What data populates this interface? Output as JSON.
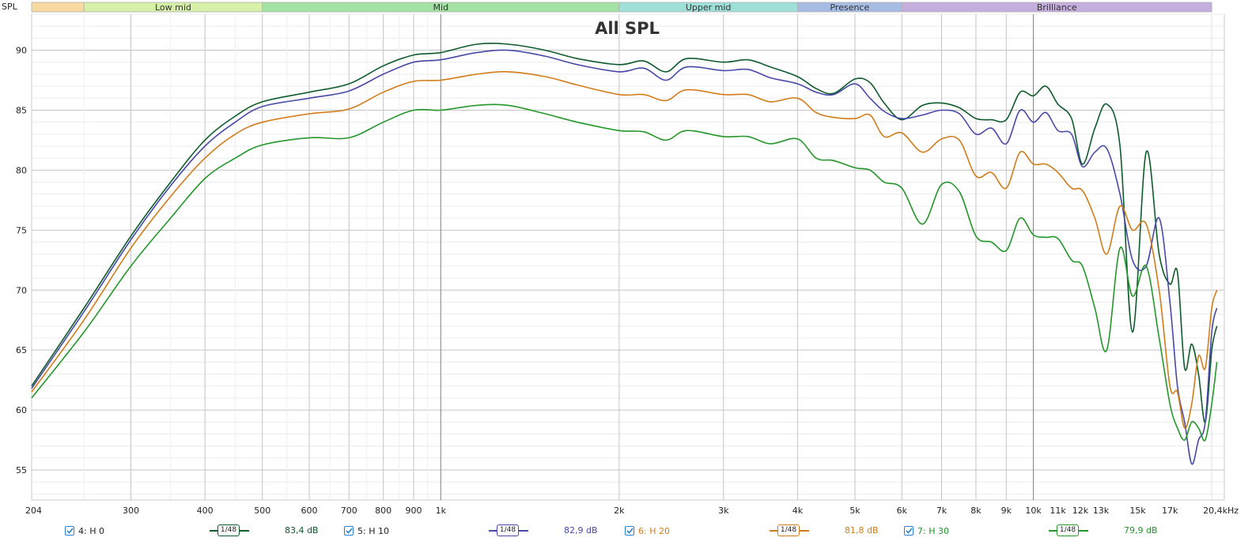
{
  "chart_data": {
    "type": "line",
    "title": "All SPL",
    "ylabel": "SPL",
    "xlabel": "",
    "x_scale": "log",
    "xlim": [
      204,
      21000
    ],
    "ylim": [
      52.5,
      93.0
    ],
    "x_tick_labels": [
      {
        "f": 204,
        "label": "204"
      },
      {
        "f": 300,
        "label": "300"
      },
      {
        "f": 400,
        "label": "400"
      },
      {
        "f": 500,
        "label": "500"
      },
      {
        "f": 600,
        "label": "600"
      },
      {
        "f": 700,
        "label": "700"
      },
      {
        "f": 800,
        "label": "800"
      },
      {
        "f": 900,
        "label": "900"
      },
      {
        "f": 1000,
        "label": "1k"
      },
      {
        "f": 2000,
        "label": "2k"
      },
      {
        "f": 3000,
        "label": "3k"
      },
      {
        "f": 4000,
        "label": "4k"
      },
      {
        "f": 5000,
        "label": "5k"
      },
      {
        "f": 6000,
        "label": "6k"
      },
      {
        "f": 7000,
        "label": "7k"
      },
      {
        "f": 8000,
        "label": "8k"
      },
      {
        "f": 9000,
        "label": "9k"
      },
      {
        "f": 10000,
        "label": "10k"
      },
      {
        "f": 11000,
        "label": "11k"
      },
      {
        "f": 12000,
        "label": "12k"
      },
      {
        "f": 13000,
        "label": "13k"
      },
      {
        "f": 15000,
        "label": "15k"
      },
      {
        "f": 17000,
        "label": "17k"
      },
      {
        "f": 20400,
        "label": "20,4kHz"
      }
    ],
    "y_ticks": [
      55,
      60,
      65,
      70,
      75,
      80,
      85,
      90
    ],
    "bands": [
      {
        "label": "",
        "from": 204,
        "to": 250,
        "color": "#f8d9a0"
      },
      {
        "label": "Low mid",
        "from": 250,
        "to": 500,
        "color": "#d7f0a8"
      },
      {
        "label": "Mid",
        "from": 500,
        "to": 2000,
        "color": "#a4e2a4"
      },
      {
        "label": "Upper mid",
        "from": 2000,
        "to": 4000,
        "color": "#9ee0d8"
      },
      {
        "label": "Presence",
        "from": 4000,
        "to": 6000,
        "color": "#a6bce2"
      },
      {
        "label": "Brilliance",
        "from": 6000,
        "to": 20000,
        "color": "#c4aedd"
      }
    ],
    "series": [
      {
        "name": "4: H 0",
        "color": "#0e5b2c",
        "smoothing": "1/48",
        "avg": "83,4 dB",
        "points": [
          [
            204,
            62.0
          ],
          [
            250,
            68.5
          ],
          [
            300,
            74.5
          ],
          [
            350,
            79.0
          ],
          [
            400,
            82.5
          ],
          [
            450,
            84.5
          ],
          [
            500,
            85.7
          ],
          [
            600,
            86.5
          ],
          [
            700,
            87.2
          ],
          [
            800,
            88.7
          ],
          [
            900,
            89.6
          ],
          [
            1000,
            89.8
          ],
          [
            1150,
            90.5
          ],
          [
            1300,
            90.5
          ],
          [
            1500,
            90.0
          ],
          [
            1700,
            89.3
          ],
          [
            2000,
            88.8
          ],
          [
            2200,
            89.1
          ],
          [
            2400,
            88.2
          ],
          [
            2600,
            89.3
          ],
          [
            3000,
            89.0
          ],
          [
            3300,
            89.2
          ],
          [
            3600,
            88.6
          ],
          [
            4000,
            87.8
          ],
          [
            4300,
            86.8
          ],
          [
            4600,
            86.4
          ],
          [
            5000,
            87.6
          ],
          [
            5300,
            87.3
          ],
          [
            5600,
            85.6
          ],
          [
            6000,
            84.2
          ],
          [
            6500,
            85.4
          ],
          [
            7000,
            85.6
          ],
          [
            7500,
            85.2
          ],
          [
            8000,
            84.3
          ],
          [
            8500,
            84.2
          ],
          [
            9000,
            84.2
          ],
          [
            9500,
            86.5
          ],
          [
            10000,
            86.2
          ],
          [
            10500,
            87.0
          ],
          [
            11000,
            85.5
          ],
          [
            11600,
            84.3
          ],
          [
            12100,
            80.5
          ],
          [
            12700,
            83.5
          ],
          [
            13300,
            85.5
          ],
          [
            14000,
            82.0
          ],
          [
            14700,
            66.5
          ],
          [
            15500,
            81.5
          ],
          [
            16300,
            73.0
          ],
          [
            17000,
            70.5
          ],
          [
            17500,
            71.5
          ],
          [
            18000,
            63.5
          ],
          [
            18500,
            65.5
          ],
          [
            19000,
            63.0
          ],
          [
            19500,
            59.0
          ],
          [
            20000,
            65.0
          ],
          [
            20400,
            67.0
          ]
        ]
      },
      {
        "name": "5: H 10",
        "color": "#4848a8",
        "smoothing": "1/48",
        "avg": "82,9 dB",
        "points": [
          [
            204,
            61.8
          ],
          [
            250,
            68.2
          ],
          [
            300,
            74.2
          ],
          [
            350,
            78.7
          ],
          [
            400,
            82.0
          ],
          [
            450,
            84.0
          ],
          [
            500,
            85.3
          ],
          [
            600,
            86.0
          ],
          [
            700,
            86.6
          ],
          [
            800,
            88.0
          ],
          [
            900,
            89.0
          ],
          [
            1000,
            89.2
          ],
          [
            1150,
            89.8
          ],
          [
            1300,
            90.0
          ],
          [
            1500,
            89.5
          ],
          [
            1700,
            88.8
          ],
          [
            2000,
            88.2
          ],
          [
            2200,
            88.5
          ],
          [
            2400,
            87.5
          ],
          [
            2600,
            88.6
          ],
          [
            3000,
            88.3
          ],
          [
            3300,
            88.4
          ],
          [
            3600,
            87.7
          ],
          [
            4000,
            87.2
          ],
          [
            4300,
            86.5
          ],
          [
            4600,
            86.3
          ],
          [
            5000,
            87.2
          ],
          [
            5300,
            86.0
          ],
          [
            5600,
            84.9
          ],
          [
            6000,
            84.3
          ],
          [
            6500,
            84.6
          ],
          [
            7000,
            85.0
          ],
          [
            7500,
            84.7
          ],
          [
            8000,
            83.0
          ],
          [
            8500,
            83.5
          ],
          [
            9000,
            82.2
          ],
          [
            9500,
            85.0
          ],
          [
            10000,
            84.0
          ],
          [
            10500,
            84.8
          ],
          [
            11000,
            83.3
          ],
          [
            11600,
            83.0
          ],
          [
            12100,
            80.3
          ],
          [
            12700,
            81.5
          ],
          [
            13300,
            81.8
          ],
          [
            14000,
            78.0
          ],
          [
            14700,
            72.5
          ],
          [
            15500,
            72.0
          ],
          [
            16300,
            76.0
          ],
          [
            17000,
            69.0
          ],
          [
            17500,
            62.0
          ],
          [
            18000,
            59.0
          ],
          [
            18500,
            55.5
          ],
          [
            19000,
            57.5
          ],
          [
            19500,
            59.0
          ],
          [
            20000,
            66.5
          ],
          [
            20400,
            68.5
          ]
        ]
      },
      {
        "name": "6: H 20",
        "color": "#d27c19",
        "smoothing": "1/48",
        "avg": "81,8 dB",
        "points": [
          [
            204,
            61.5
          ],
          [
            250,
            67.5
          ],
          [
            300,
            73.5
          ],
          [
            350,
            77.8
          ],
          [
            400,
            81.0
          ],
          [
            450,
            83.0
          ],
          [
            500,
            84.0
          ],
          [
            600,
            84.7
          ],
          [
            700,
            85.1
          ],
          [
            800,
            86.5
          ],
          [
            900,
            87.4
          ],
          [
            1000,
            87.5
          ],
          [
            1150,
            88.0
          ],
          [
            1300,
            88.2
          ],
          [
            1500,
            87.8
          ],
          [
            1700,
            87.1
          ],
          [
            2000,
            86.3
          ],
          [
            2200,
            86.3
          ],
          [
            2400,
            85.8
          ],
          [
            2600,
            86.7
          ],
          [
            3000,
            86.3
          ],
          [
            3300,
            86.3
          ],
          [
            3600,
            85.7
          ],
          [
            4000,
            86.0
          ],
          [
            4300,
            84.8
          ],
          [
            4600,
            84.4
          ],
          [
            5000,
            84.3
          ],
          [
            5300,
            84.6
          ],
          [
            5600,
            82.8
          ],
          [
            6000,
            83.1
          ],
          [
            6500,
            81.5
          ],
          [
            7000,
            82.6
          ],
          [
            7500,
            82.5
          ],
          [
            8000,
            79.5
          ],
          [
            8500,
            79.8
          ],
          [
            9000,
            78.5
          ],
          [
            9500,
            81.5
          ],
          [
            10000,
            80.5
          ],
          [
            10500,
            80.5
          ],
          [
            11000,
            79.8
          ],
          [
            11600,
            78.5
          ],
          [
            12100,
            78.3
          ],
          [
            12700,
            76.0
          ],
          [
            13300,
            73.0
          ],
          [
            14000,
            77.0
          ],
          [
            14700,
            75.0
          ],
          [
            15500,
            75.5
          ],
          [
            16300,
            70.0
          ],
          [
            17000,
            62.0
          ],
          [
            17500,
            61.5
          ],
          [
            18000,
            58.5
          ],
          [
            18500,
            60.5
          ],
          [
            19000,
            64.5
          ],
          [
            19500,
            63.5
          ],
          [
            20000,
            68.5
          ],
          [
            20400,
            70.0
          ]
        ]
      },
      {
        "name": "7: H 30",
        "color": "#24962a",
        "smoothing": "1/48",
        "avg": "79,9 dB",
        "points": [
          [
            204,
            61.0
          ],
          [
            250,
            66.5
          ],
          [
            300,
            72.0
          ],
          [
            350,
            76.0
          ],
          [
            400,
            79.3
          ],
          [
            450,
            81.0
          ],
          [
            500,
            82.1
          ],
          [
            600,
            82.7
          ],
          [
            700,
            82.7
          ],
          [
            800,
            84.0
          ],
          [
            900,
            85.0
          ],
          [
            1000,
            85.0
          ],
          [
            1150,
            85.4
          ],
          [
            1300,
            85.4
          ],
          [
            1500,
            84.7
          ],
          [
            1700,
            84.0
          ],
          [
            2000,
            83.3
          ],
          [
            2200,
            83.2
          ],
          [
            2400,
            82.5
          ],
          [
            2600,
            83.3
          ],
          [
            3000,
            82.8
          ],
          [
            3300,
            82.8
          ],
          [
            3600,
            82.2
          ],
          [
            4000,
            82.6
          ],
          [
            4300,
            81.0
          ],
          [
            4600,
            80.8
          ],
          [
            5000,
            80.2
          ],
          [
            5300,
            80.0
          ],
          [
            5600,
            79.0
          ],
          [
            6000,
            78.5
          ],
          [
            6500,
            75.5
          ],
          [
            7000,
            78.8
          ],
          [
            7500,
            78.2
          ],
          [
            8000,
            74.5
          ],
          [
            8500,
            74.0
          ],
          [
            9000,
            73.3
          ],
          [
            9500,
            76.0
          ],
          [
            10000,
            74.6
          ],
          [
            10500,
            74.4
          ],
          [
            11000,
            74.3
          ],
          [
            11600,
            72.5
          ],
          [
            12100,
            72.0
          ],
          [
            12700,
            68.5
          ],
          [
            13300,
            65.0
          ],
          [
            14000,
            73.5
          ],
          [
            14700,
            69.5
          ],
          [
            15500,
            72.0
          ],
          [
            16300,
            66.0
          ],
          [
            17000,
            60.5
          ],
          [
            17500,
            58.5
          ],
          [
            18000,
            57.5
          ],
          [
            18500,
            59.0
          ],
          [
            19000,
            58.5
          ],
          [
            19500,
            57.5
          ],
          [
            20000,
            60.5
          ],
          [
            20400,
            64.0
          ]
        ]
      }
    ]
  }
}
